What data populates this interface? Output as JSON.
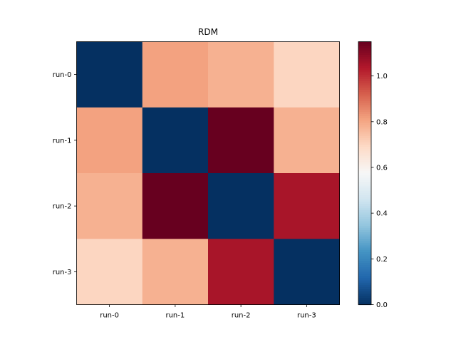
{
  "chart_data": {
    "type": "heatmap",
    "title": "RDM",
    "xlabel": "",
    "ylabel": "",
    "x_categories": [
      "run-0",
      "run-1",
      "run-2",
      "run-3"
    ],
    "y_categories": [
      "run-0",
      "run-1",
      "run-2",
      "run-3"
    ],
    "values": [
      [
        0.0,
        0.81,
        0.78,
        0.7
      ],
      [
        0.81,
        0.0,
        1.15,
        0.78
      ],
      [
        0.78,
        1.15,
        0.0,
        1.05
      ],
      [
        0.7,
        0.78,
        1.05,
        0.0
      ]
    ],
    "colormap": "RdBu_r",
    "colorbar": {
      "range": [
        0.0,
        1.15
      ],
      "ticks": [
        0.0,
        0.2,
        0.4,
        0.6,
        0.8,
        1.0
      ],
      "tick_labels": [
        "0.0",
        "0.2",
        "0.4",
        "0.6",
        "0.8",
        "1.0"
      ]
    },
    "grid": false
  }
}
